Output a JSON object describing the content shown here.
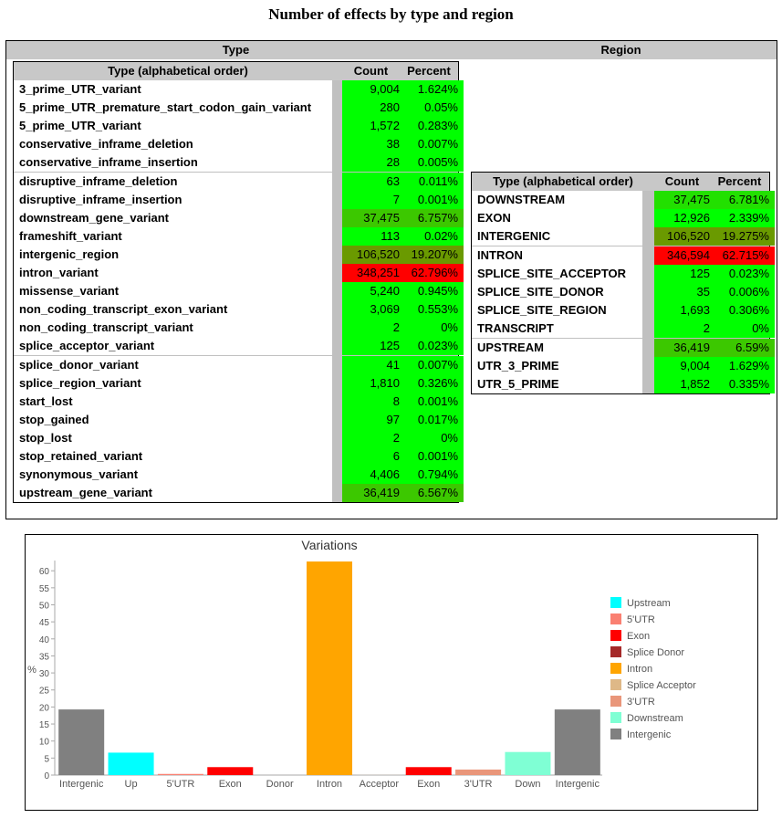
{
  "title": "Number of effects by type and region",
  "type_section": {
    "header": "Type",
    "table": {
      "columns": [
        "Type (alphabetical order)",
        "Count",
        "Percent"
      ],
      "rows": [
        {
          "name": "3_prime_UTR_variant",
          "count": "9,004",
          "percent": "1.624%",
          "color": "#00ff00"
        },
        {
          "name": "5_prime_UTR_premature_start_codon_gain_variant",
          "count": "280",
          "percent": "0.05%",
          "color": "#00ff00"
        },
        {
          "name": "5_prime_UTR_variant",
          "count": "1,572",
          "percent": "0.283%",
          "color": "#00ff00"
        },
        {
          "name": "conservative_inframe_deletion",
          "count": "38",
          "percent": "0.007%",
          "color": "#00ff00"
        },
        {
          "name": "conservative_inframe_insertion",
          "count": "28",
          "percent": "0.005%",
          "color": "#00ff00"
        },
        {
          "name": "disruptive_inframe_deletion",
          "count": "63",
          "percent": "0.011%",
          "color": "#00ff00"
        },
        {
          "name": "disruptive_inframe_insertion",
          "count": "7",
          "percent": "0.001%",
          "color": "#00ff00"
        },
        {
          "name": "downstream_gene_variant",
          "count": "37,475",
          "percent": "6.757%",
          "color": "#3cc800"
        },
        {
          "name": "frameshift_variant",
          "count": "113",
          "percent": "0.02%",
          "color": "#00ff00"
        },
        {
          "name": "intergenic_region",
          "count": "106,520",
          "percent": "19.207%",
          "color": "#6a9a00"
        },
        {
          "name": "intron_variant",
          "count": "348,251",
          "percent": "62.796%",
          "color": "#ff0000"
        },
        {
          "name": "missense_variant",
          "count": "5,240",
          "percent": "0.945%",
          "color": "#00ff00"
        },
        {
          "name": "non_coding_transcript_exon_variant",
          "count": "3,069",
          "percent": "0.553%",
          "color": "#00ff00"
        },
        {
          "name": "non_coding_transcript_variant",
          "count": "2",
          "percent": "0%",
          "color": "#00ff00"
        },
        {
          "name": "splice_acceptor_variant",
          "count": "125",
          "percent": "0.023%",
          "color": "#00ff00"
        },
        {
          "name": "splice_donor_variant",
          "count": "41",
          "percent": "0.007%",
          "color": "#00ff00"
        },
        {
          "name": "splice_region_variant",
          "count": "1,810",
          "percent": "0.326%",
          "color": "#00ff00"
        },
        {
          "name": "start_lost",
          "count": "8",
          "percent": "0.001%",
          "color": "#00ff00"
        },
        {
          "name": "stop_gained",
          "count": "97",
          "percent": "0.017%",
          "color": "#00ff00"
        },
        {
          "name": "stop_lost",
          "count": "2",
          "percent": "0%",
          "color": "#00ff00"
        },
        {
          "name": "stop_retained_variant",
          "count": "6",
          "percent": "0.001%",
          "color": "#00ff00"
        },
        {
          "name": "synonymous_variant",
          "count": "4,406",
          "percent": "0.794%",
          "color": "#00ff00"
        },
        {
          "name": "upstream_gene_variant",
          "count": "36,419",
          "percent": "6.567%",
          "color": "#3cc800"
        }
      ]
    }
  },
  "region_section": {
    "header": "Region",
    "table": {
      "columns": [
        "Type (alphabetical order)",
        "Count",
        "Percent"
      ],
      "rows": [
        {
          "name": "DOWNSTREAM",
          "count": "37,475",
          "percent": "6.781%",
          "color": "#22e000"
        },
        {
          "name": "EXON",
          "count": "12,926",
          "percent": "2.339%",
          "color": "#00ff00"
        },
        {
          "name": "INTERGENIC",
          "count": "106,520",
          "percent": "19.275%",
          "color": "#6a9a00"
        },
        {
          "name": "INTRON",
          "count": "346,594",
          "percent": "62.715%",
          "color": "#ff0000"
        },
        {
          "name": "SPLICE_SITE_ACCEPTOR",
          "count": "125",
          "percent": "0.023%",
          "color": "#00ff00"
        },
        {
          "name": "SPLICE_SITE_DONOR",
          "count": "35",
          "percent": "0.006%",
          "color": "#00ff00"
        },
        {
          "name": "SPLICE_SITE_REGION",
          "count": "1,693",
          "percent": "0.306%",
          "color": "#00ff00"
        },
        {
          "name": "TRANSCRIPT",
          "count": "2",
          "percent": "0%",
          "color": "#00ff00"
        },
        {
          "name": "UPSTREAM",
          "count": "36,419",
          "percent": "6.59%",
          "color": "#3cc800"
        },
        {
          "name": "UTR_3_PRIME",
          "count": "9,004",
          "percent": "1.629%",
          "color": "#00ff00"
        },
        {
          "name": "UTR_5_PRIME",
          "count": "1,852",
          "percent": "0.335%",
          "color": "#00ff00"
        }
      ]
    }
  },
  "chart_data": {
    "type": "bar",
    "title": "Variations",
    "y_label": "%",
    "categories": [
      "Intergenic",
      "Up",
      "5'UTR",
      "Exon",
      "Donor",
      "Intron",
      "Acceptor",
      "Exon",
      "3'UTR",
      "Down",
      "Intergenic"
    ],
    "values": [
      19.275,
      6.59,
      0.335,
      2.339,
      0.006,
      62.715,
      0.023,
      2.339,
      1.629,
      6.781,
      19.275
    ],
    "colors": [
      "#808080",
      "#00ffff",
      "#fa8072",
      "#ff0000",
      "#a52a2a",
      "#ffa500",
      "#deb887",
      "#ff0000",
      "#e9967a",
      "#7fffd4",
      "#808080"
    ],
    "ylim": [
      0,
      63
    ],
    "yticks": [
      0,
      5,
      10,
      15,
      20,
      25,
      30,
      35,
      40,
      45,
      50,
      55,
      60
    ],
    "legend": [
      {
        "name": "Upstream",
        "color": "#00ffff"
      },
      {
        "name": "5'UTR",
        "color": "#fa8072"
      },
      {
        "name": "Exon",
        "color": "#ff0000"
      },
      {
        "name": "Splice Donor",
        "color": "#a52a2a"
      },
      {
        "name": "Intron",
        "color": "#ffa500"
      },
      {
        "name": "Splice Acceptor",
        "color": "#deb887"
      },
      {
        "name": "3'UTR",
        "color": "#e9967a"
      },
      {
        "name": "Downstream",
        "color": "#7fffd4"
      },
      {
        "name": "Intergenic",
        "color": "#808080"
      }
    ]
  }
}
